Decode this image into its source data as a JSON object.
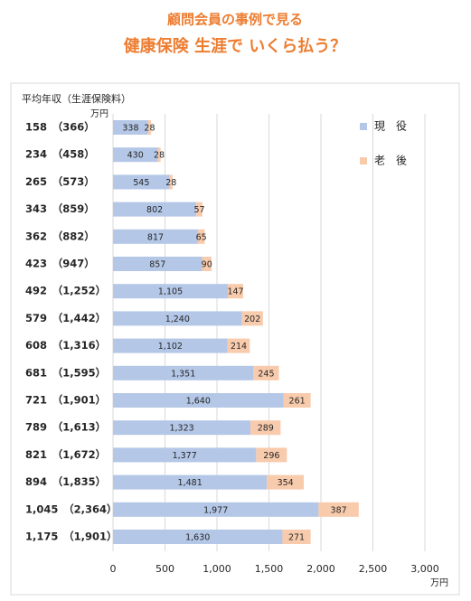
{
  "chart_data": {
    "type": "stacked-bar-horizontal",
    "title": "顧問会員の事例で見る",
    "subtitle": "健康保険 生涯で いくら払う？",
    "y_axis_label": "平均年収（生涯保険料）",
    "y_axis_unit": "万円",
    "x_axis_unit": "万円",
    "categories": [
      "158　（366）",
      "234　（458）",
      "265　（573）",
      "343　（859）",
      "362　（882）",
      "423　（947）",
      "492　（1,252）",
      "579　（1,442）",
      "608　（1,316）",
      "681　（1,595）",
      "721　（1,901）",
      "789　（1,613）",
      "821　（1,672）",
      "894　（1,835）",
      "1,045　（2,364）",
      "1,175　（1,901）"
    ],
    "series": [
      {
        "name": "現　役",
        "color": "#b4c7e7",
        "values": [
          338,
          430,
          545,
          802,
          817,
          857,
          1105,
          1240,
          1102,
          1351,
          1640,
          1323,
          1377,
          1481,
          1977,
          1630
        ],
        "value_labels": [
          "338",
          "430",
          "545",
          "802",
          "817",
          "857",
          "1,105",
          "1,240",
          "1,102",
          "1,351",
          "1,640",
          "1,323",
          "1,377",
          "1,481",
          "1,977",
          "1,630"
        ]
      },
      {
        "name": "老　後",
        "color": "#f8cbad",
        "values": [
          28,
          28,
          28,
          57,
          65,
          90,
          147,
          202,
          214,
          245,
          261,
          289,
          296,
          354,
          387,
          271
        ]
      }
    ],
    "xlim": [
      0,
      3000
    ],
    "xticks": [
      0,
      500,
      {
        "value": 1000,
        "label": "1,000"
      },
      {
        "value": 1500,
        "label": "1,500"
      },
      {
        "value": 2000,
        "label": "2,000"
      },
      {
        "value": 2500,
        "label": "2,500"
      },
      {
        "value": 3000,
        "label": "3,000"
      }
    ],
    "grid": true,
    "legend": "right"
  }
}
